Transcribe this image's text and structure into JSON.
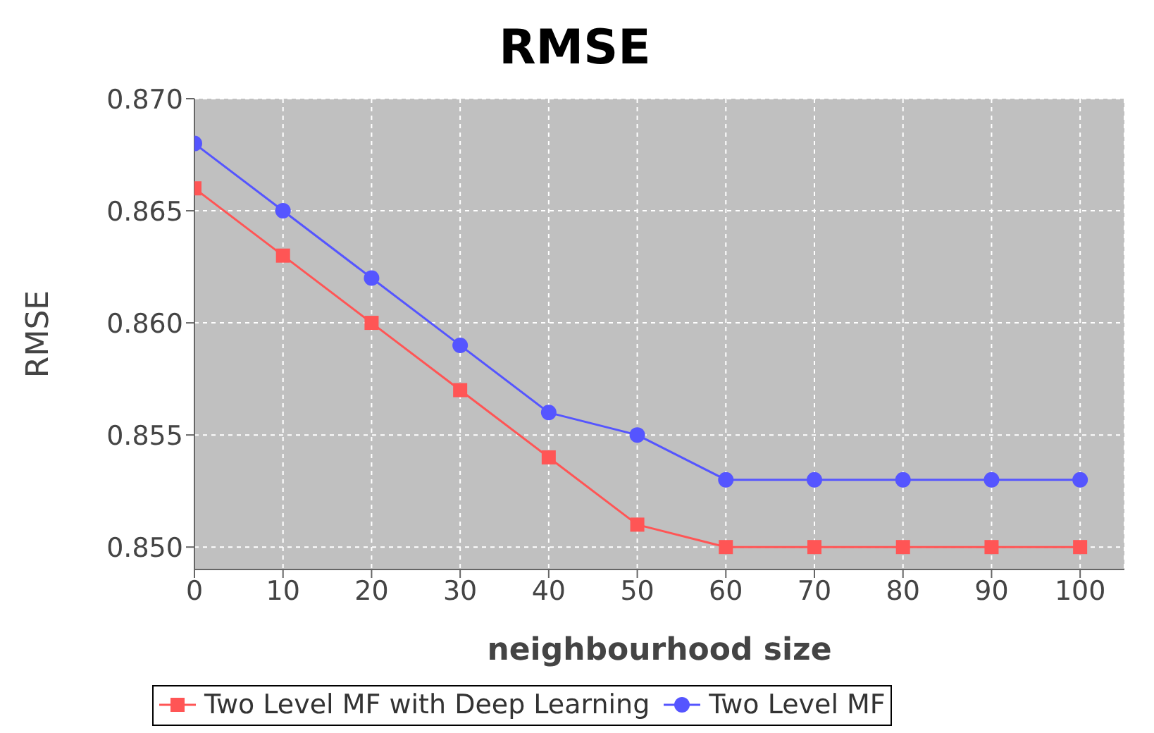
{
  "chart_data": {
    "type": "line",
    "title": "RMSE",
    "xlabel": "neighbourhood size",
    "ylabel": "RMSE",
    "x": [
      0,
      10,
      20,
      30,
      40,
      50,
      60,
      70,
      80,
      90,
      100
    ],
    "series": [
      {
        "name": "Two Level MF with Deep Learning",
        "color": "#ff5555",
        "marker": "square",
        "values": [
          0.866,
          0.863,
          0.86,
          0.857,
          0.854,
          0.851,
          0.85,
          0.85,
          0.85,
          0.85,
          0.85
        ]
      },
      {
        "name": "Two Level MF",
        "color": "#5555ff",
        "marker": "circle",
        "values": [
          0.868,
          0.865,
          0.862,
          0.859,
          0.856,
          0.855,
          0.853,
          0.853,
          0.853,
          0.853,
          0.853
        ]
      }
    ],
    "xlim": [
      0,
      105
    ],
    "xticks": [
      0,
      10,
      20,
      30,
      40,
      50,
      60,
      70,
      80,
      90,
      100
    ],
    "ylim": [
      0.849,
      0.87
    ],
    "yticks": [
      {
        "value": 0.85,
        "label": "0.850"
      },
      {
        "value": 0.855,
        "label": "0.855"
      },
      {
        "value": 0.86,
        "label": "0.860"
      },
      {
        "value": 0.865,
        "label": "0.865"
      },
      {
        "value": 0.87,
        "label": "0.870"
      }
    ],
    "grid": true,
    "legend": "bottom",
    "line_style": "solid"
  }
}
